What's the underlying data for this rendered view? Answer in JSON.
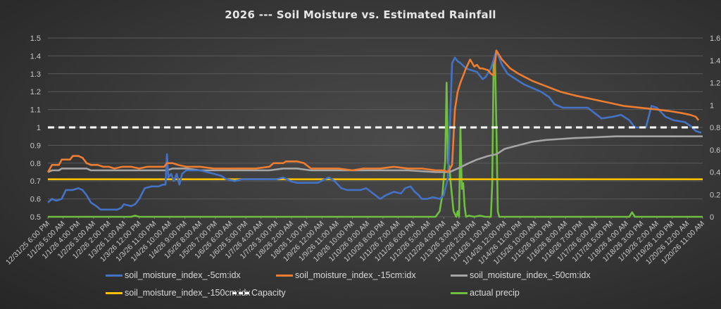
{
  "chart_data": {
    "type": "line",
    "title": "2026 --- Soil Moisture vs. Estimated Rainfall",
    "xlabel": "",
    "ylabel": "",
    "y_left_lim": [
      0.5,
      1.5
    ],
    "y_left_ticks": [
      "0.5",
      "0.6",
      "0.7",
      "0.8",
      "0.9",
      "1",
      "1.1",
      "1.2",
      "1.3",
      "1.4",
      "1.5"
    ],
    "y_right_lim": [
      0,
      1.6
    ],
    "y_right_ticks": [
      "0",
      "0.2",
      "0.4",
      "0.6",
      "0.8",
      "1",
      "1.2",
      "1.4",
      "1.6"
    ],
    "x_unit": "hours since 12/31/25 6:00 PM",
    "x_range": [
      0,
      473
    ],
    "x_tick_step_hours": 11,
    "x_tick_labels": [
      "12/31/25 6:00 PM",
      "1/1/26 5:00 AM",
      "1/1/26 4:00 PM",
      "1/2/26 3:00 AM",
      "1/2/26 2:00 PM",
      "1/3/26 1:00 AM",
      "1/3/26 12:00 PM",
      "1/3/26 11:00 PM",
      "1/4/26 10:00 AM",
      "1/4/26 9:00 PM",
      "1/5/26 8:00 AM",
      "1/5/26 7:00 PM",
      "1/6/26 6:00 AM",
      "1/6/26 5:00 PM",
      "1/7/26 4:00 AM",
      "1/7/26 3:00 PM",
      "1/8/26 2:00 AM",
      "1/8/26 1:00 PM",
      "1/9/26 12:00 AM",
      "1/9/26 11:00 AM",
      "1/9/26 10:00 PM",
      "1/10/26 9:00 AM",
      "1/10/26 8:00 PM",
      "1/11/26 7:00 AM",
      "1/11/26 6:00 PM",
      "1/12/26 5:00 AM",
      "1/12/26 4:00 PM",
      "1/13/26 3:00 AM",
      "1/13/26 2:00 PM",
      "1/14/26 1:00 AM",
      "1/14/26 12:00 PM",
      "1/14/26 11:00 PM",
      "1/15/26 10:00 AM",
      "1/15/26 9:00 PM",
      "1/16/26 8:00 AM",
      "1/16/26 7:00 PM",
      "1/17/26 6:00 AM",
      "1/17/26 5:00 PM",
      "1/18/26 4:00 AM",
      "1/18/26 3:00 PM",
      "1/19/26 2:00 AM",
      "1/19/26 1:00 PM",
      "1/20/26 12:00 AM",
      "1/20/26 11:00 AM"
    ],
    "grid": true,
    "legend_position": "bottom",
    "series": [
      {
        "name": "soil_moisture_index_-5cm:idx",
        "axis": "left",
        "color": "#4472c4",
        "style": "solid",
        "points": [
          [
            0,
            0.58
          ],
          [
            3,
            0.6
          ],
          [
            6,
            0.59
          ],
          [
            10,
            0.6
          ],
          [
            13,
            0.65
          ],
          [
            18,
            0.65
          ],
          [
            22,
            0.66
          ],
          [
            25,
            0.65
          ],
          [
            28,
            0.62
          ],
          [
            31,
            0.58
          ],
          [
            35,
            0.56
          ],
          [
            38,
            0.54
          ],
          [
            45,
            0.54
          ],
          [
            50,
            0.54
          ],
          [
            53,
            0.55
          ],
          [
            55,
            0.57
          ],
          [
            60,
            0.56
          ],
          [
            63,
            0.57
          ],
          [
            66,
            0.6
          ],
          [
            70,
            0.66
          ],
          [
            75,
            0.67
          ],
          [
            80,
            0.67
          ],
          [
            83,
            0.68
          ],
          [
            85,
            0.68
          ],
          [
            86,
            0.85
          ],
          [
            87,
            0.72
          ],
          [
            89,
            0.74
          ],
          [
            91,
            0.7
          ],
          [
            93,
            0.74
          ],
          [
            95,
            0.68
          ],
          [
            97,
            0.74
          ],
          [
            100,
            0.76
          ],
          [
            110,
            0.76
          ],
          [
            120,
            0.74
          ],
          [
            125,
            0.73
          ],
          [
            129,
            0.71
          ],
          [
            135,
            0.7
          ],
          [
            140,
            0.71
          ],
          [
            150,
            0.71
          ],
          [
            160,
            0.71
          ],
          [
            165,
            0.71
          ],
          [
            170,
            0.72
          ],
          [
            175,
            0.7
          ],
          [
            180,
            0.69
          ],
          [
            184,
            0.69
          ],
          [
            190,
            0.69
          ],
          [
            195,
            0.69
          ],
          [
            200,
            0.71
          ],
          [
            203,
            0.72
          ],
          [
            207,
            0.7
          ],
          [
            212,
            0.66
          ],
          [
            216,
            0.65
          ],
          [
            220,
            0.65
          ],
          [
            226,
            0.65
          ],
          [
            230,
            0.66
          ],
          [
            235,
            0.63
          ],
          [
            240,
            0.6
          ],
          [
            244,
            0.62
          ],
          [
            250,
            0.64
          ],
          [
            255,
            0.63
          ],
          [
            258,
            0.66
          ],
          [
            262,
            0.67
          ],
          [
            265,
            0.64
          ],
          [
            268,
            0.62
          ],
          [
            270,
            0.6
          ],
          [
            274,
            0.6
          ],
          [
            278,
            0.61
          ],
          [
            283,
            0.6
          ],
          [
            286,
            0.62
          ],
          [
            289,
            0.72
          ],
          [
            292,
            1.36
          ],
          [
            294,
            1.39
          ],
          [
            296,
            1.37
          ],
          [
            298,
            1.36
          ],
          [
            302,
            1.33
          ],
          [
            306,
            1.32
          ],
          [
            310,
            1.31
          ],
          [
            314,
            1.27
          ],
          [
            316,
            1.28
          ],
          [
            320,
            1.33
          ],
          [
            324,
            1.43
          ],
          [
            328,
            1.35
          ],
          [
            332,
            1.3
          ],
          [
            336,
            1.28
          ],
          [
            340,
            1.26
          ],
          [
            344,
            1.24
          ],
          [
            350,
            1.22
          ],
          [
            356,
            1.2
          ],
          [
            362,
            1.17
          ],
          [
            366,
            1.13
          ],
          [
            372,
            1.11
          ],
          [
            380,
            1.11
          ],
          [
            390,
            1.11
          ],
          [
            395,
            1.08
          ],
          [
            400,
            1.05
          ],
          [
            408,
            1.06
          ],
          [
            414,
            1.07
          ],
          [
            420,
            1.04
          ],
          [
            424,
            1.0
          ],
          [
            428,
            1.0
          ],
          [
            432,
            1.0
          ],
          [
            436,
            1.12
          ],
          [
            440,
            1.11
          ],
          [
            446,
            1.06
          ],
          [
            452,
            1.04
          ],
          [
            460,
            1.03
          ],
          [
            464,
            1.01
          ],
          [
            468,
            0.98
          ],
          [
            472,
            0.97
          ]
        ]
      },
      {
        "name": "soil_moisture_index_-15cm:idx",
        "axis": "left",
        "color": "#ed7d31",
        "style": "solid",
        "points": [
          [
            0,
            0.75
          ],
          [
            3,
            0.79
          ],
          [
            6,
            0.79
          ],
          [
            8,
            0.79
          ],
          [
            10,
            0.82
          ],
          [
            16,
            0.82
          ],
          [
            18,
            0.84
          ],
          [
            22,
            0.84
          ],
          [
            25,
            0.83
          ],
          [
            28,
            0.8
          ],
          [
            31,
            0.79
          ],
          [
            36,
            0.79
          ],
          [
            40,
            0.78
          ],
          [
            44,
            0.78
          ],
          [
            48,
            0.77
          ],
          [
            54,
            0.78
          ],
          [
            60,
            0.78
          ],
          [
            66,
            0.77
          ],
          [
            72,
            0.78
          ],
          [
            78,
            0.78
          ],
          [
            84,
            0.78
          ],
          [
            86,
            0.8
          ],
          [
            90,
            0.8
          ],
          [
            94,
            0.79
          ],
          [
            100,
            0.78
          ],
          [
            110,
            0.78
          ],
          [
            120,
            0.77
          ],
          [
            135,
            0.77
          ],
          [
            150,
            0.77
          ],
          [
            160,
            0.78
          ],
          [
            163,
            0.8
          ],
          [
            170,
            0.8
          ],
          [
            172,
            0.81
          ],
          [
            180,
            0.81
          ],
          [
            185,
            0.8
          ],
          [
            190,
            0.77
          ],
          [
            200,
            0.77
          ],
          [
            210,
            0.77
          ],
          [
            220,
            0.76
          ],
          [
            228,
            0.77
          ],
          [
            240,
            0.77
          ],
          [
            250,
            0.78
          ],
          [
            260,
            0.77
          ],
          [
            270,
            0.77
          ],
          [
            280,
            0.76
          ],
          [
            286,
            0.76
          ],
          [
            289,
            0.75
          ],
          [
            292,
            0.79
          ],
          [
            294,
            1.1
          ],
          [
            296,
            1.2
          ],
          [
            298,
            1.25
          ],
          [
            300,
            1.29
          ],
          [
            302,
            1.33
          ],
          [
            305,
            1.38
          ],
          [
            308,
            1.34
          ],
          [
            310,
            1.35
          ],
          [
            312,
            1.33
          ],
          [
            314,
            1.33
          ],
          [
            318,
            1.32
          ],
          [
            320,
            1.3
          ],
          [
            322,
            1.29
          ],
          [
            324,
            1.43
          ],
          [
            328,
            1.38
          ],
          [
            334,
            1.33
          ],
          [
            340,
            1.3
          ],
          [
            350,
            1.26
          ],
          [
            360,
            1.23
          ],
          [
            370,
            1.2
          ],
          [
            380,
            1.18
          ],
          [
            392,
            1.16
          ],
          [
            404,
            1.14
          ],
          [
            416,
            1.12
          ],
          [
            428,
            1.11
          ],
          [
            440,
            1.1
          ],
          [
            450,
            1.09
          ],
          [
            458,
            1.08
          ],
          [
            464,
            1.07
          ],
          [
            468,
            1.06
          ],
          [
            470,
            1.04
          ]
        ]
      },
      {
        "name": "soil_moisture_index_-50cm:idx",
        "axis": "left",
        "color": "#a5a5a5",
        "style": "solid",
        "points": [
          [
            0,
            0.75
          ],
          [
            3,
            0.76
          ],
          [
            8,
            0.76
          ],
          [
            10,
            0.77
          ],
          [
            20,
            0.77
          ],
          [
            28,
            0.77
          ],
          [
            31,
            0.76
          ],
          [
            40,
            0.76
          ],
          [
            60,
            0.76
          ],
          [
            86,
            0.76
          ],
          [
            90,
            0.77
          ],
          [
            100,
            0.77
          ],
          [
            110,
            0.76
          ],
          [
            140,
            0.76
          ],
          [
            150,
            0.76
          ],
          [
            160,
            0.76
          ],
          [
            170,
            0.77
          ],
          [
            180,
            0.77
          ],
          [
            190,
            0.76
          ],
          [
            220,
            0.76
          ],
          [
            240,
            0.76
          ],
          [
            260,
            0.76
          ],
          [
            280,
            0.75
          ],
          [
            290,
            0.75
          ],
          [
            296,
            0.77
          ],
          [
            304,
            0.8
          ],
          [
            310,
            0.82
          ],
          [
            318,
            0.84
          ],
          [
            324,
            0.85
          ],
          [
            330,
            0.88
          ],
          [
            340,
            0.9
          ],
          [
            350,
            0.92
          ],
          [
            360,
            0.93
          ],
          [
            370,
            0.935
          ],
          [
            380,
            0.94
          ],
          [
            395,
            0.945
          ],
          [
            410,
            0.95
          ],
          [
            430,
            0.95
          ],
          [
            445,
            0.95
          ],
          [
            462,
            0.95
          ],
          [
            470,
            0.95
          ],
          [
            473,
            0.95
          ]
        ]
      },
      {
        "name": "soil_moisture_index_-150cm:idx",
        "axis": "left",
        "color": "#ffc000",
        "style": "solid",
        "points": [
          [
            0,
            0.71
          ],
          [
            100,
            0.71
          ],
          [
            200,
            0.71
          ],
          [
            300,
            0.71
          ],
          [
            473,
            0.71
          ]
        ]
      },
      {
        "name": "Capacity",
        "axis": "left",
        "color": "#ffffff",
        "style": "dashed",
        "points": [
          [
            0,
            1.0
          ],
          [
            473,
            1.0
          ]
        ]
      },
      {
        "name": "actual precip",
        "axis": "right",
        "color": "#70c040",
        "style": "solid",
        "points": [
          [
            0,
            0
          ],
          [
            60,
            0
          ],
          [
            63,
            0.01
          ],
          [
            66,
            0
          ],
          [
            280,
            0
          ],
          [
            283,
            0.05
          ],
          [
            285,
            0.2
          ],
          [
            287,
            0.5
          ],
          [
            288,
            1.2
          ],
          [
            289,
            0.48
          ],
          [
            290,
            0.45
          ],
          [
            291,
            0.3
          ],
          [
            293,
            0.05
          ],
          [
            295,
            0
          ],
          [
            296,
            0.05
          ],
          [
            297,
            0
          ],
          [
            298,
            0.8
          ],
          [
            299,
            0.25
          ],
          [
            300,
            0.3
          ],
          [
            301,
            0.1
          ],
          [
            302,
            0
          ],
          [
            304,
            0.01
          ],
          [
            308,
            0
          ],
          [
            312,
            0.01
          ],
          [
            316,
            0
          ],
          [
            320,
            0
          ],
          [
            321,
            0.3
          ],
          [
            322,
            1.4
          ],
          [
            323,
            1.38
          ],
          [
            324,
            0.8
          ],
          [
            325,
            0.05
          ],
          [
            326,
            0
          ],
          [
            420,
            0
          ],
          [
            422,
            0.04
          ],
          [
            424,
            0
          ],
          [
            473,
            0
          ]
        ]
      }
    ]
  },
  "legend": {
    "items": [
      {
        "label": "soil_moisture_index_-5cm:idx",
        "color": "#4472c4"
      },
      {
        "label": "soil_moisture_index_-15cm:idx",
        "color": "#ed7d31"
      },
      {
        "label": "soil_moisture_index_-50cm:idx",
        "color": "#a5a5a5"
      },
      {
        "label": "soil_moisture_index_-150cm:idx",
        "color": "#ffc000"
      },
      {
        "label": "Capacity",
        "color": "#ffffff"
      },
      {
        "label": "actual precip",
        "color": "#70c040"
      }
    ]
  }
}
